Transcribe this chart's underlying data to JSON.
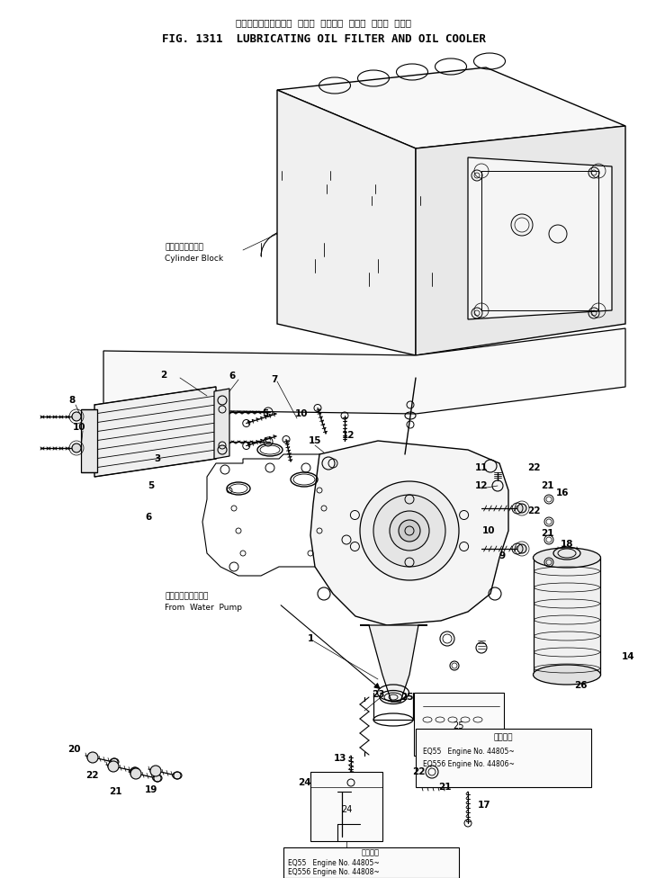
{
  "title_japanese": "ルーブリケーティング  オイル  フィルタ  および  オイル  クーラ",
  "title_english": "FIG. 1311  LUBRICATING OIL FILTER AND OIL COOLER",
  "bg_color": "#ffffff",
  "fig_width": 7.19,
  "fig_height": 9.76,
  "dpi": 100,
  "label_cylinder_block_jp": "シリンダブロック",
  "label_cylinder_block_en": "Cylinder Block",
  "label_from_water_pump_jp": "ウォータポンプから",
  "label_from_water_pump_en": "From  Water  Pump",
  "label_eq55": "EQ55   Engine No. 44805~",
  "label_eq556": "EQ556 Engine No. 44806~",
  "label_eq55_b": "EQ55   Engine No. 44805~",
  "label_eq556_b": "EQ556 Engine No. 44808~",
  "label_applicable": "適用号機"
}
